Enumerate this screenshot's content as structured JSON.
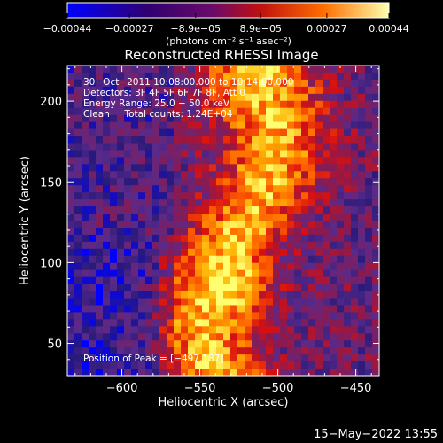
{
  "chart_data": {
    "type": "heatmap",
    "title": "Reconstructed RHESSI Image",
    "xlabel": "Heliocentric X (arcsec)",
    "ylabel": "Heliocentric Y (arcsec)",
    "xlim": [
      -635,
      -435
    ],
    "ylim": [
      30,
      222
    ],
    "x_ticks": [
      -600,
      -550,
      -500,
      -450
    ],
    "x_tick_labels": [
      "−600",
      "−550",
      "−500",
      "−450"
    ],
    "y_ticks": [
      50,
      100,
      150,
      200
    ],
    "y_tick_labels": [
      "50",
      "100",
      "150",
      "200"
    ],
    "colorbar": {
      "range": [
        -0.00044,
        0.00044
      ],
      "ticks": [
        -0.00044,
        -0.00027,
        -8.9e-05,
        8.9e-05,
        0.00027,
        0.00044
      ],
      "tick_labels": [
        "−0.00044",
        "−0.00027",
        "−8.9e−05",
        "8.9e−05",
        "0.00027",
        "0.00044"
      ],
      "unit": "(photons cm⁻² s⁻¹ asec⁻²)"
    },
    "annotations": [
      "30−Oct−2011 10:08:00.000 to 10:14:00.000",
      "Detectors: 3F 4F 5F 6F 7F 8F, Att 0",
      "Energy Range: 25.0 − 50.0 keV",
      "Clean     Total counts: 1.24E+04"
    ],
    "peak_label": "Position of Peak = [−497,187]",
    "grid": false,
    "colormap": [
      "#0000ff",
      "#2a1a7a",
      "#5a2a8a",
      "#8a1a50",
      "#d81010",
      "#ff6000",
      "#ffb000",
      "#ffff70"
    ]
  },
  "footer": {
    "timestamp": "15−May−2022 13:55"
  }
}
